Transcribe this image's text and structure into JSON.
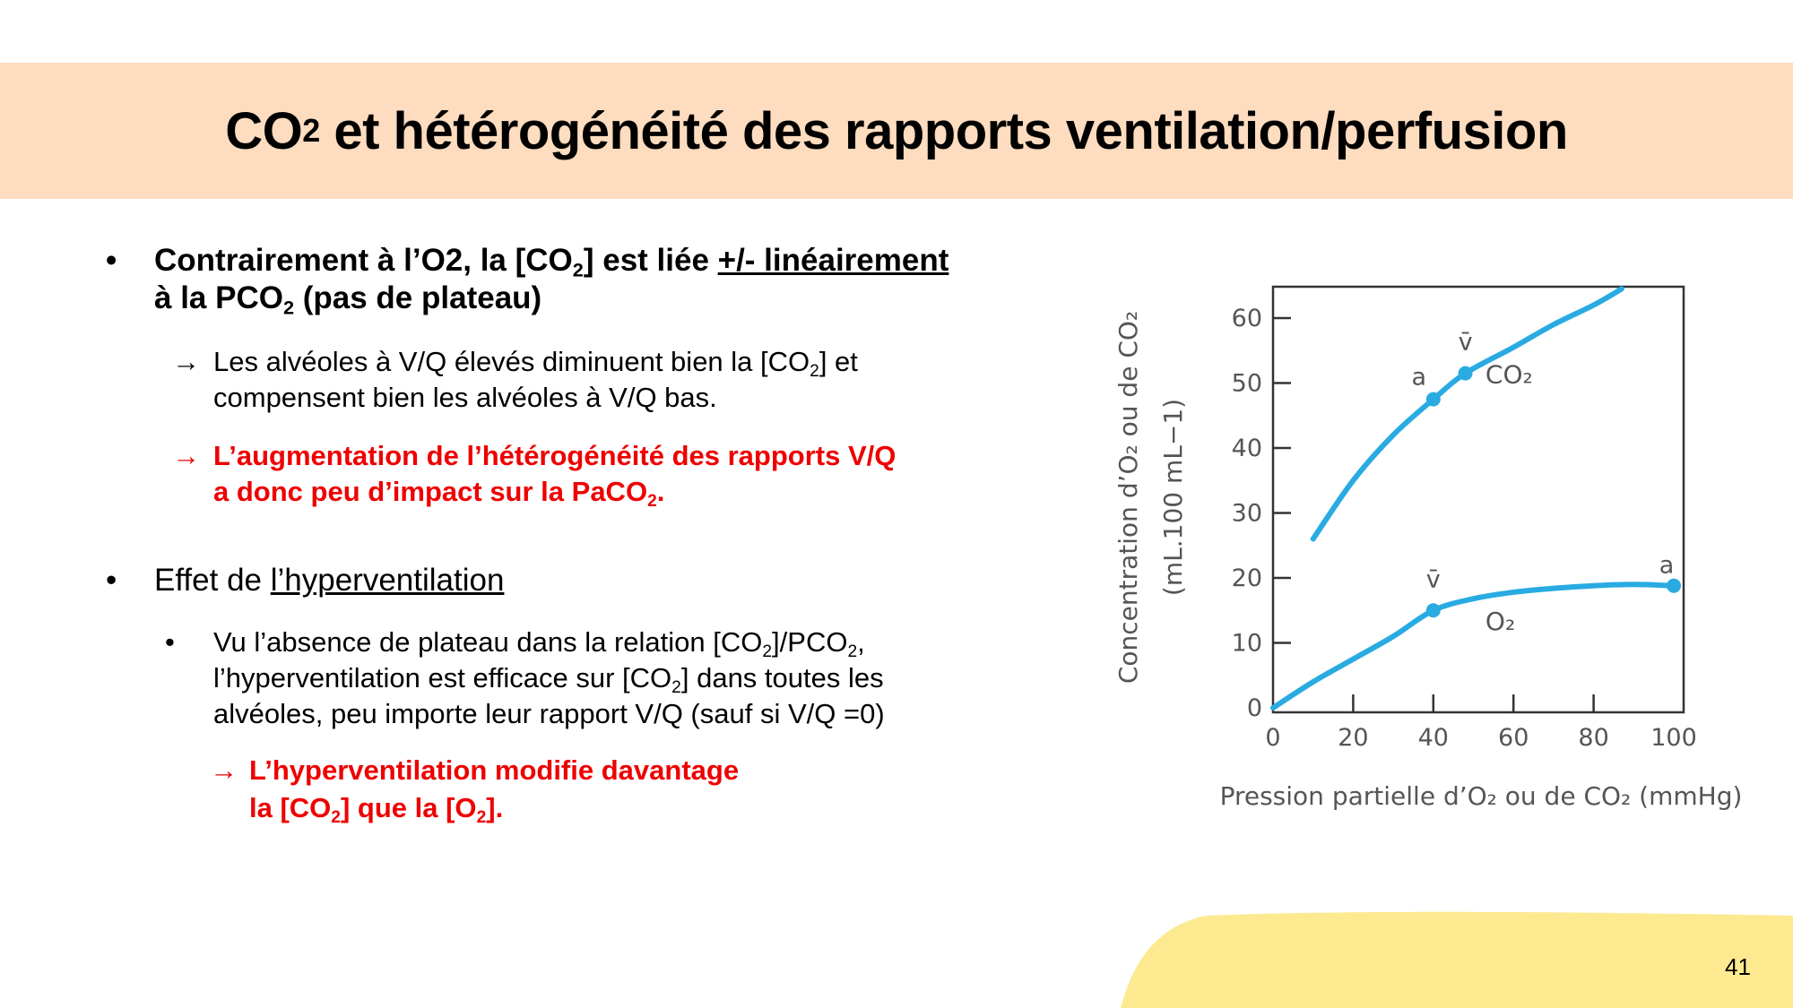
{
  "slide": {
    "title_prefix": "CO",
    "title_sub": "2",
    "title_rest": " et hétérogénéité des rapports ventilation/perfusion",
    "page_number": "41",
    "colors": {
      "title_band": "#fddcbf",
      "accent_red": "#ee0000",
      "footer_blob": "#fde98f",
      "curve": "#29abe2"
    }
  },
  "bullets": {
    "b1": {
      "bullet": "•",
      "p1": "Contrairement à l’O2, la [CO",
      "s1": "2",
      "p2": "] est liée ",
      "underlined": "+/- linéairement",
      "p3": "à la PCO",
      "s2": "2",
      "p4": " (pas de plateau)"
    },
    "a1": {
      "arrow": "→",
      "p1": "Les alvéoles à V/Q élevés diminuent bien la [CO",
      "s1": "2",
      "p2": "] et",
      "p3": "compensent bien les alvéoles à V/Q bas."
    },
    "a2": {
      "arrow": "→",
      "p1": "L’augmentation de l’hétérogénéité des rapports V/Q",
      "p2": "a donc peu d’impact sur la PaCO",
      "s1": "2",
      "p3": "."
    },
    "b2": {
      "bullet": "•",
      "p1": "Effet de ",
      "underlined": "l’hyperventilation"
    },
    "sb1": {
      "bullet": "•",
      "p1": "Vu l’absence de plateau dans la relation [CO",
      "s1": "2",
      "p2": "]/PCO",
      "s2": "2",
      "p3": ",",
      "p4": "l’hyperventilation est efficace sur [CO",
      "s3": "2",
      "p5": "] dans toutes les",
      "p6": "alvéoles, peu importe leur rapport V/Q (sauf si V/Q =0)"
    },
    "c1": {
      "arrow": "→",
      "p1": "L’hyperventilation modifie davantage",
      "p2": "la [CO",
      "s1": "2",
      "p3": "] que la [O",
      "s2": "2",
      "p4": "]."
    }
  },
  "chart_data": {
    "type": "line",
    "title": "",
    "xlabel": "Pression partielle d’O₂ ou de CO₂ (mmHg)",
    "ylabel": "Concentration d’O₂ ou de CO₂ (mL.100 mL−1)",
    "xlim": [
      0,
      100
    ],
    "ylim": [
      0,
      65
    ],
    "x_ticks": [
      "0",
      "20",
      "40",
      "60",
      "80",
      "100"
    ],
    "y_ticks": [
      "0",
      "10",
      "20",
      "30",
      "40",
      "50",
      "60"
    ],
    "grid": false,
    "legend": "inline labels",
    "series": [
      {
        "name": "CO2",
        "label": "CO₂",
        "x": [
          10,
          20,
          30,
          40,
          48,
          60,
          70,
          80,
          87
        ],
        "values": [
          26,
          35,
          42,
          47.5,
          51.5,
          55.5,
          59,
          62,
          64.5
        ],
        "points": [
          {
            "label": "a",
            "x": 40,
            "y": 47.5
          },
          {
            "label": "v̄",
            "x": 48,
            "y": 51.5
          }
        ]
      },
      {
        "name": "O2",
        "label": "O₂",
        "x": [
          0,
          10,
          20,
          30,
          40,
          50,
          60,
          70,
          80,
          90,
          100
        ],
        "values": [
          0,
          4,
          7.5,
          11,
          15,
          16.8,
          17.8,
          18.4,
          18.8,
          19,
          18.8
        ],
        "points": [
          {
            "label": "v̄",
            "x": 40,
            "y": 15
          },
          {
            "label": "a",
            "x": 100,
            "y": 18.8
          }
        ]
      }
    ]
  }
}
